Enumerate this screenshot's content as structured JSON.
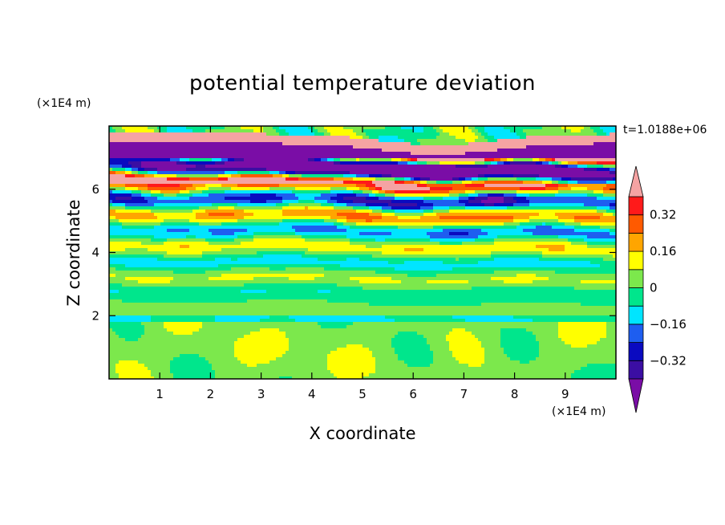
{
  "chart_data": {
    "type": "heatmap",
    "title": "potential temperature deviation",
    "xlabel": "X coordinate",
    "ylabel": "Z coordinate",
    "x_unit": "(×1E4 m)",
    "y_unit": "(×1E4 m)",
    "time_label": "t=1.0188e+06",
    "xlim": [
      0,
      10
    ],
    "ylim": [
      0,
      8
    ],
    "x_ticks": [
      1,
      2,
      3,
      4,
      5,
      6,
      7,
      8,
      9
    ],
    "y_ticks": [
      2,
      4,
      6
    ],
    "x_tick_labels": [
      "1",
      "2",
      "3",
      "4",
      "5",
      "6",
      "7",
      "8",
      "9"
    ],
    "y_tick_labels": [
      "2",
      "4",
      "6"
    ],
    "colorbar": {
      "levels": [
        -0.4,
        -0.32,
        -0.24,
        -0.16,
        -0.08,
        0,
        0.08,
        0.16,
        0.24,
        0.32,
        0.4
      ],
      "colors": [
        "#7a0da6",
        "#3b0ea3",
        "#0a0ac0",
        "#1e5ef0",
        "#00e5ff",
        "#00e68c",
        "#7ce84c",
        "#ffff00",
        "#ffa500",
        "#ff5a00",
        "#ff1a1a",
        "#f5a3a3"
      ],
      "tick_values": [
        0.32,
        0.16,
        0,
        -0.16,
        -0.32
      ],
      "tick_labels": [
        "0.32",
        "0.16",
        "0",
        "−0.16",
        "−0.32"
      ]
    }
  }
}
